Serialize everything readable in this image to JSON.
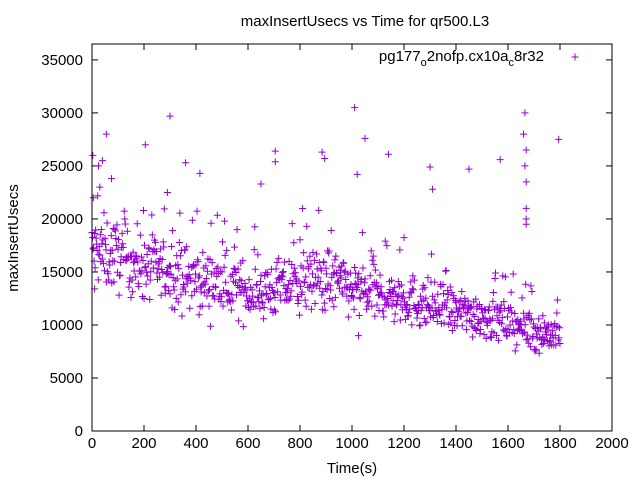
{
  "chart_data": {
    "type": "scatter",
    "title": "maxInsertUsecs vs Time for qr500.L3",
    "xlabel": "Time(s)",
    "ylabel": "maxInsertUsecs",
    "xlim": [
      0,
      2000
    ],
    "ylim": [
      0,
      36500
    ],
    "x_ticks": [
      0,
      200,
      400,
      600,
      800,
      1000,
      1200,
      1400,
      1600,
      1800,
      2000
    ],
    "y_ticks": [
      0,
      5000,
      10000,
      15000,
      20000,
      25000,
      30000,
      35000
    ],
    "marker": "+",
    "color": "#9400d3",
    "legend": {
      "position": "top-right",
      "entries": [
        {
          "label_base": "pg177",
          "label_sub1": "o",
          "label_mid": "2nofp.cx10a",
          "label_sub2": "c",
          "label_end": "8r32"
        }
      ]
    },
    "series": [
      {
        "name": "pg177_o2nofp.cx10a_c8r32",
        "sample_interval_s": 2,
        "x_start": 0,
        "x_end": 1800,
        "trend": [
          [
            0,
            17000
          ],
          [
            100,
            16500
          ],
          [
            200,
            15500
          ],
          [
            300,
            15000
          ],
          [
            400,
            14200
          ],
          [
            500,
            13800
          ],
          [
            600,
            13200
          ],
          [
            700,
            13300
          ],
          [
            800,
            14000
          ],
          [
            900,
            14500
          ],
          [
            1000,
            13300
          ],
          [
            1100,
            12800
          ],
          [
            1200,
            12500
          ],
          [
            1300,
            11800
          ],
          [
            1400,
            11200
          ],
          [
            1500,
            11000
          ],
          [
            1600,
            10200
          ],
          [
            1700,
            9500
          ],
          [
            1800,
            9000
          ]
        ],
        "spread_frac": 0.18,
        "outliers": [
          [
            3,
            26000
          ],
          [
            5,
            22000
          ],
          [
            10,
            13400
          ],
          [
            25,
            25000
          ],
          [
            30,
            23000
          ],
          [
            40,
            25500
          ],
          [
            55,
            28000
          ],
          [
            75,
            23800
          ],
          [
            205,
            27000
          ],
          [
            290,
            22500
          ],
          [
            300,
            29700
          ],
          [
            360,
            25300
          ],
          [
            415,
            24300
          ],
          [
            650,
            23300
          ],
          [
            705,
            26400
          ],
          [
            705,
            25400
          ],
          [
            885,
            26300
          ],
          [
            895,
            25700
          ],
          [
            1010,
            30500
          ],
          [
            1020,
            24200
          ],
          [
            1050,
            27600
          ],
          [
            1140,
            26100
          ],
          [
            1300,
            24900
          ],
          [
            1310,
            22800
          ],
          [
            1450,
            24700
          ],
          [
            1570,
            25600
          ],
          [
            1660,
            28000
          ],
          [
            1665,
            30000
          ],
          [
            1670,
            26500
          ],
          [
            1665,
            25000
          ],
          [
            1670,
            23500
          ],
          [
            1670,
            21000
          ],
          [
            1670,
            20000
          ],
          [
            1670,
            19500
          ],
          [
            1795,
            27500
          ],
          [
            1025,
            9000
          ]
        ]
      }
    ]
  }
}
